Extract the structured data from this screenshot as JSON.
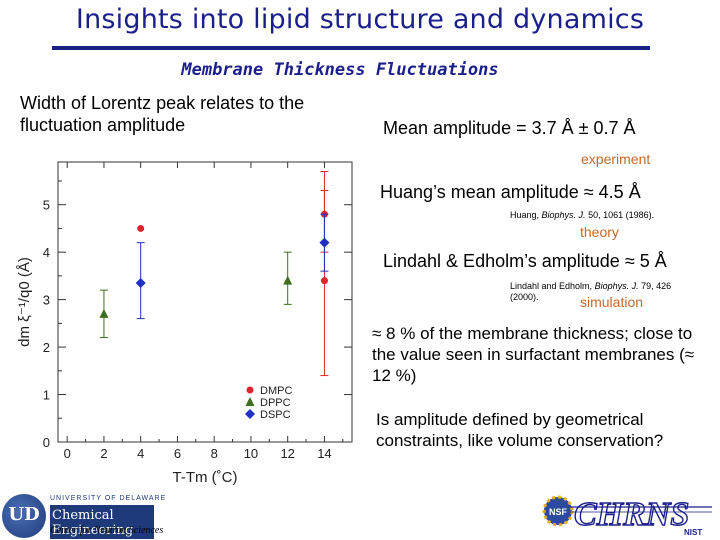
{
  "title": "Insights into lipid structure and dynamics",
  "subtitle": "Membrane Thickness Fluctuations",
  "left_text": "Width of Lorentz peak relates to the fluctuation amplitude",
  "mean_amplitude": "Mean amplitude = 3.7 Å ± 0.7 Å",
  "tag_experiment": "experiment",
  "huang": "Huang’s mean amplitude ≈ 4.5 Å",
  "huang_ref": {
    "pre": "Huang, ",
    "journal": "Biophys. J.",
    "post": " 50, 1061 (1986)."
  },
  "tag_theory": "theory",
  "lindahl": "Lindahl & Edholm’s amplitude ≈ 5 Å",
  "lindahl_ref": {
    "pre": "Lindahl and Edholm, ",
    "journal": "Biophys. J.",
    "post": " 79, 426 (2000)."
  },
  "tag_simulation": "simulation",
  "percent_text": "≈ 8 % of the membrane thickness; close to the value seen in surfactant membranes (≈ 12 %)",
  "question": "Is amplitude defined by geometrical constraints, like volume conservation?",
  "logos": {
    "ud_line1": "UNIVERSITY OF DELAWARE",
    "ud_line2": "Chemical Engineering",
    "ud_line3": "Center for Neutron Sciences",
    "ud_seal": "UD",
    "chrns": "CHRNS",
    "nist": "NIST",
    "nsf": "NSF"
  },
  "colors": {
    "title": "#1a1f8a",
    "tag": "#c8682a",
    "DMPC": "#e0242c",
    "DPPC": "#3d6e1e",
    "DSPC": "#1f2fc8"
  },
  "chart_data": {
    "type": "scatter",
    "xlabel": "T-Tm (˚C)",
    "ylabel": "dm ξ⁻¹/q0 (Å)",
    "xlim": [
      -0.5,
      15.5
    ],
    "ylim": [
      0,
      5.9
    ],
    "xticks": [
      0,
      2,
      4,
      6,
      8,
      10,
      12,
      14
    ],
    "yticks": [
      0,
      1,
      2,
      3,
      4,
      5
    ],
    "legend_position": "bottom-right",
    "series": [
      {
        "name": "DMPC",
        "marker": "circle",
        "color": "#e0242c",
        "points": [
          {
            "x": 4,
            "y": 4.5,
            "err": [
              4.5,
              4.5
            ]
          },
          {
            "x": 14,
            "y": 4.8,
            "err": [
              4.0,
              5.3
            ]
          },
          {
            "x": 14,
            "y": 3.4,
            "err": [
              1.4,
              5.7
            ]
          }
        ]
      },
      {
        "name": "DPPC",
        "marker": "triangle",
        "color": "#3d6e1e",
        "points": [
          {
            "x": 2,
            "y": 2.7,
            "err": [
              2.2,
              3.2
            ]
          },
          {
            "x": 12,
            "y": 3.4,
            "err": [
              2.9,
              4.0
            ]
          }
        ]
      },
      {
        "name": "DSPC",
        "marker": "diamond",
        "color": "#1f2fc8",
        "points": [
          {
            "x": 4,
            "y": 3.35,
            "err": [
              2.6,
              4.2
            ]
          },
          {
            "x": 14,
            "y": 4.2,
            "err": [
              3.6,
              4.8
            ]
          }
        ]
      }
    ]
  }
}
